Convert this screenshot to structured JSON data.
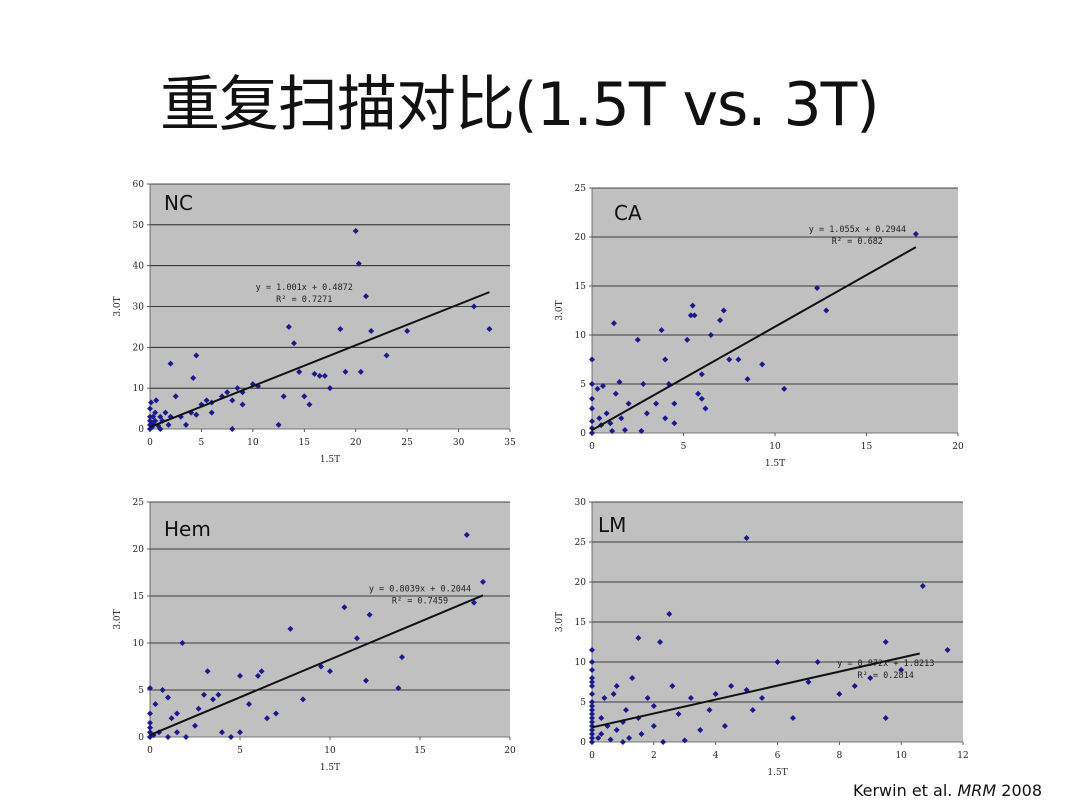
{
  "slide": {
    "title": "重复扫描对比(1.5T vs. 3T)",
    "citation": {
      "authors": "Kerwin et al.",
      "journal": "MRM",
      "year": "2008"
    }
  },
  "colors": {
    "plot_bg": "#c0c0c0",
    "marker": "#1a1a8c",
    "line": "#111111",
    "grid": "#111111"
  },
  "chart_data": [
    {
      "type": "scatter",
      "label": "NC",
      "xlabel": "1.5T",
      "ylabel": "3.0T",
      "xlim": [
        0,
        35
      ],
      "ylim": [
        0,
        60
      ],
      "xticks": [
        0,
        5,
        10,
        15,
        20,
        25,
        30,
        35
      ],
      "yticks": [
        0,
        10,
        20,
        30,
        40,
        50,
        60
      ],
      "equation": "y = 1.001x + 0.4872",
      "r2": "R² = 0.7271",
      "fit": {
        "slope": 1.001,
        "intercept": 0.4872,
        "x_range": [
          0,
          33
        ]
      },
      "points": [
        [
          0,
          0
        ],
        [
          0,
          1
        ],
        [
          0,
          2
        ],
        [
          0,
          3
        ],
        [
          0,
          5
        ],
        [
          0.1,
          6.5
        ],
        [
          0.2,
          0.5
        ],
        [
          0.3,
          1.5
        ],
        [
          0.3,
          3
        ],
        [
          0.5,
          2
        ],
        [
          0.5,
          4
        ],
        [
          0.6,
          7
        ],
        [
          0.8,
          0.8
        ],
        [
          1,
          3
        ],
        [
          1,
          0
        ],
        [
          1.2,
          2
        ],
        [
          1.5,
          4
        ],
        [
          1.8,
          1
        ],
        [
          2,
          3
        ],
        [
          2,
          16
        ],
        [
          2.5,
          8
        ],
        [
          3,
          3
        ],
        [
          3.5,
          1
        ],
        [
          4,
          4
        ],
        [
          4.2,
          12.5
        ],
        [
          4.5,
          18
        ],
        [
          4.5,
          3.5
        ],
        [
          5,
          6
        ],
        [
          5.5,
          7
        ],
        [
          6,
          6.5
        ],
        [
          6,
          4
        ],
        [
          7,
          8
        ],
        [
          7.5,
          9
        ],
        [
          8,
          7
        ],
        [
          8,
          0
        ],
        [
          8.5,
          10
        ],
        [
          9,
          9
        ],
        [
          9,
          6
        ],
        [
          10,
          11
        ],
        [
          10.5,
          10.5
        ],
        [
          12.5,
          1
        ],
        [
          13,
          8
        ],
        [
          13.5,
          25
        ],
        [
          14,
          21
        ],
        [
          14.5,
          14
        ],
        [
          15,
          8
        ],
        [
          15.5,
          6
        ],
        [
          16,
          13.5
        ],
        [
          16.5,
          13
        ],
        [
          17,
          13
        ],
        [
          17.5,
          10
        ],
        [
          18.5,
          24.5
        ],
        [
          19,
          14
        ],
        [
          20,
          48.5
        ],
        [
          20.3,
          40.5
        ],
        [
          20.5,
          14
        ],
        [
          21,
          32.5
        ],
        [
          21.5,
          24
        ],
        [
          23,
          18
        ],
        [
          25,
          24
        ],
        [
          33,
          24.5
        ],
        [
          31.5,
          30
        ]
      ]
    },
    {
      "type": "scatter",
      "label": "CA",
      "xlabel": "1.5T",
      "ylabel": "3.0T",
      "xlim": [
        0,
        20
      ],
      "ylim": [
        0,
        25
      ],
      "xticks": [
        0,
        5,
        10,
        15,
        20
      ],
      "yticks": [
        0,
        5,
        10,
        15,
        20,
        25
      ],
      "equation": "y = 1.055x + 0.2944",
      "r2": "R² = 0.682",
      "fit": {
        "slope": 1.055,
        "intercept": 0.2944,
        "x_range": [
          0,
          17.7
        ]
      },
      "points": [
        [
          0,
          0
        ],
        [
          0,
          0.5
        ],
        [
          0,
          1.2
        ],
        [
          0,
          2.5
        ],
        [
          0,
          3.5
        ],
        [
          0,
          5
        ],
        [
          0,
          7.5
        ],
        [
          0.3,
          4.5
        ],
        [
          0.4,
          1.5
        ],
        [
          0.5,
          0.8
        ],
        [
          0.6,
          4.8
        ],
        [
          0.8,
          2
        ],
        [
          1,
          1
        ],
        [
          1.1,
          0.2
        ],
        [
          1.2,
          11.2
        ],
        [
          1.3,
          4
        ],
        [
          1.5,
          5.2
        ],
        [
          1.6,
          1.5
        ],
        [
          1.8,
          0.3
        ],
        [
          2,
          3
        ],
        [
          2.5,
          9.5
        ],
        [
          2.7,
          0.2
        ],
        [
          2.8,
          5
        ],
        [
          3,
          2
        ],
        [
          3.5,
          3
        ],
        [
          3.8,
          10.5
        ],
        [
          4,
          7.5
        ],
        [
          4,
          1.5
        ],
        [
          4.2,
          5
        ],
        [
          4.5,
          3
        ],
        [
          4.5,
          1
        ],
        [
          5.2,
          9.5
        ],
        [
          5.4,
          12
        ],
        [
          5.5,
          13
        ],
        [
          5.6,
          12
        ],
        [
          5.8,
          4
        ],
        [
          6,
          3.5
        ],
        [
          6,
          6
        ],
        [
          6.2,
          2.5
        ],
        [
          6.5,
          10
        ],
        [
          7,
          11.5
        ],
        [
          7.2,
          12.5
        ],
        [
          7.5,
          7.5
        ],
        [
          8,
          7.5
        ],
        [
          8.5,
          5.5
        ],
        [
          9.3,
          7
        ],
        [
          10.5,
          4.5
        ],
        [
          12.3,
          14.8
        ],
        [
          12.8,
          12.5
        ],
        [
          17.7,
          20.3
        ]
      ]
    },
    {
      "type": "scatter",
      "label": "Hem",
      "xlabel": "1.5T",
      "ylabel": "3.0T",
      "xlim": [
        0,
        20
      ],
      "ylim": [
        0,
        25
      ],
      "xticks": [
        0,
        5,
        10,
        15,
        20
      ],
      "yticks": [
        0,
        5,
        10,
        15,
        20,
        25
      ],
      "equation": "y = 0.8039x + 0.2044",
      "r2": "R² = 0.7459",
      "fit": {
        "slope": 0.8039,
        "intercept": 0.2044,
        "x_range": [
          0,
          18.5
        ]
      },
      "points": [
        [
          0,
          0
        ],
        [
          0,
          0.5
        ],
        [
          0,
          1
        ],
        [
          0,
          1.5
        ],
        [
          0,
          2.5
        ],
        [
          0,
          5.2
        ],
        [
          0.2,
          0.2
        ],
        [
          0.3,
          3.5
        ],
        [
          0.5,
          0.5
        ],
        [
          0.7,
          5
        ],
        [
          1,
          4.2
        ],
        [
          1,
          0
        ],
        [
          1.2,
          2
        ],
        [
          1.5,
          2.5
        ],
        [
          1.5,
          0.5
        ],
        [
          1.8,
          10
        ],
        [
          2,
          0
        ],
        [
          2.5,
          1.2
        ],
        [
          2.7,
          3
        ],
        [
          3,
          4.5
        ],
        [
          3.2,
          7
        ],
        [
          3.5,
          4
        ],
        [
          3.8,
          4.5
        ],
        [
          4,
          0.5
        ],
        [
          4.5,
          0
        ],
        [
          5,
          6.5
        ],
        [
          5,
          0.5
        ],
        [
          5.5,
          3.5
        ],
        [
          6,
          6.5
        ],
        [
          6.2,
          7
        ],
        [
          6.5,
          2
        ],
        [
          7,
          2.5
        ],
        [
          7.8,
          11.5
        ],
        [
          8.5,
          4
        ],
        [
          9.5,
          7.5
        ],
        [
          10,
          7
        ],
        [
          10.8,
          13.8
        ],
        [
          11.5,
          10.5
        ],
        [
          12,
          6
        ],
        [
          12.2,
          13
        ],
        [
          13.8,
          5.2
        ],
        [
          14,
          8.5
        ],
        [
          17.6,
          21.5
        ],
        [
          18,
          14.3
        ],
        [
          18.5,
          16.5
        ]
      ]
    },
    {
      "type": "scatter",
      "label": "LM",
      "xlabel": "1.5T",
      "ylabel": "3.0T",
      "xlim": [
        0,
        12
      ],
      "ylim": [
        0,
        30
      ],
      "xticks": [
        0,
        2,
        4,
        6,
        8,
        10,
        12
      ],
      "yticks": [
        0,
        5,
        10,
        15,
        20,
        25,
        30
      ],
      "equation": "y = 0.872x + 1.8213",
      "r2": "R² = 0.2814",
      "fit": {
        "slope": 0.872,
        "intercept": 1.8213,
        "x_range": [
          0,
          10.6
        ]
      },
      "points": [
        [
          0,
          0
        ],
        [
          0,
          0.5
        ],
        [
          0,
          1
        ],
        [
          0,
          1.5
        ],
        [
          0,
          2
        ],
        [
          0,
          2.5
        ],
        [
          0,
          3
        ],
        [
          0,
          3.5
        ],
        [
          0,
          4
        ],
        [
          0,
          4.5
        ],
        [
          0,
          5
        ],
        [
          0,
          6
        ],
        [
          0,
          7
        ],
        [
          0,
          7.5
        ],
        [
          0,
          8
        ],
        [
          0,
          9
        ],
        [
          0,
          10
        ],
        [
          0,
          11.5
        ],
        [
          0.2,
          0.5
        ],
        [
          0.3,
          1
        ],
        [
          0.3,
          3
        ],
        [
          0.4,
          5.5
        ],
        [
          0.5,
          2
        ],
        [
          0.6,
          0.3
        ],
        [
          0.7,
          6
        ],
        [
          0.8,
          1.5
        ],
        [
          0.8,
          7
        ],
        [
          1,
          2.5
        ],
        [
          1,
          0
        ],
        [
          1.1,
          4
        ],
        [
          1.2,
          0.5
        ],
        [
          1.3,
          8
        ],
        [
          1.5,
          3
        ],
        [
          1.5,
          13
        ],
        [
          1.6,
          1
        ],
        [
          1.8,
          5.5
        ],
        [
          2,
          2
        ],
        [
          2,
          4.5
        ],
        [
          2.2,
          12.5
        ],
        [
          2.3,
          0
        ],
        [
          2.5,
          16
        ],
        [
          2.6,
          7
        ],
        [
          2.8,
          3.5
        ],
        [
          3,
          0.2
        ],
        [
          3.2,
          5.5
        ],
        [
          3.5,
          1.5
        ],
        [
          3.8,
          4
        ],
        [
          4,
          6
        ],
        [
          4.3,
          2
        ],
        [
          4.5,
          7
        ],
        [
          5,
          25.5
        ],
        [
          5,
          6.5
        ],
        [
          5.2,
          4
        ],
        [
          5.5,
          5.5
        ],
        [
          6,
          10
        ],
        [
          6.5,
          3
        ],
        [
          7,
          7.5
        ],
        [
          7.3,
          10
        ],
        [
          8,
          6
        ],
        [
          8.5,
          7
        ],
        [
          9,
          8
        ],
        [
          9.5,
          3
        ],
        [
          9.5,
          12.5
        ],
        [
          10,
          9
        ],
        [
          10.7,
          19.5
        ],
        [
          11.5,
          11.5
        ]
      ]
    }
  ]
}
